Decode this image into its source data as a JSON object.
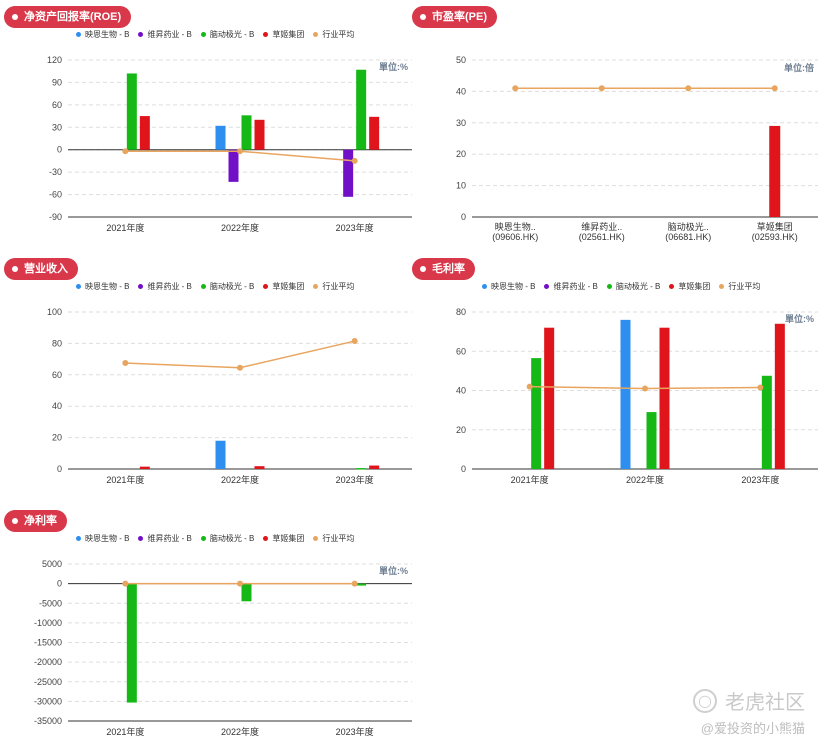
{
  "colors": {
    "badge": "#d8384a",
    "series": [
      "#2f8ff0",
      "#7210c8",
      "#15b815",
      "#e0141b",
      "#e8a560"
    ],
    "grid": "#dddddd",
    "axis": "#333333",
    "unit_text": "#6f7f93"
  },
  "legend_labels": [
    "映恩生物 - B",
    "维昇药业 - B",
    "脑动极光 - B",
    "草姬集团",
    "行业平均"
  ],
  "panels": [
    {
      "id": "roe",
      "title": "净资产回报率(ROE)",
      "unit": "單位:%",
      "legend": true
    },
    {
      "id": "pe",
      "title": "市盈率(PE)",
      "unit": "单位:倍",
      "legend": false
    },
    {
      "id": "revenue",
      "title": "营业收入",
      "unit": "",
      "legend": true
    },
    {
      "id": "gross-margin",
      "title": "毛利率",
      "unit": "單位:%",
      "legend": true
    },
    {
      "id": "net-margin",
      "title": "净利率",
      "unit": "單位:%",
      "legend": true
    }
  ],
  "chart_data": [
    {
      "type": "bar",
      "title": "净资产回报率(ROE)",
      "categories": [
        "2021年度",
        "2022年度",
        "2023年度"
      ],
      "ylim": [
        -90,
        120
      ],
      "yticks": [
        -90,
        -60,
        -30,
        0,
        30,
        60,
        90,
        120
      ],
      "grid": true,
      "legend_position": "top",
      "series": [
        {
          "name": "映恩生物 - B",
          "values": [
            null,
            32,
            null
          ]
        },
        {
          "name": "维昇药业 - B",
          "values": [
            null,
            -43,
            -63
          ]
        },
        {
          "name": "脑动极光 - B",
          "values": [
            102,
            46,
            107
          ]
        },
        {
          "name": "草姬集团",
          "values": [
            45,
            40,
            44
          ]
        }
      ],
      "line": {
        "name": "行业平均",
        "values": [
          -2,
          -2,
          -15
        ]
      }
    },
    {
      "type": "bar",
      "title": "市盈率(PE)",
      "categories": [
        "映恩生物..\n(09606.HK)",
        "维昇药业..\n(02561.HK)",
        "脑动极光..\n(06681.HK)",
        "草姬集团\n(02593.HK)"
      ],
      "ylim": [
        0,
        50
      ],
      "yticks": [
        0,
        10,
        20,
        30,
        40,
        50
      ],
      "grid": true,
      "series": [
        {
          "name": "草姬集团",
          "values": [
            null,
            null,
            null,
            29
          ]
        }
      ],
      "line": {
        "name": "行业平均",
        "values": [
          41,
          41,
          41,
          41
        ]
      }
    },
    {
      "type": "bar",
      "title": "营业收入",
      "categories": [
        "2021年度",
        "2022年度",
        "2023年度"
      ],
      "ylim": [
        0,
        100
      ],
      "yticks": [
        0,
        20,
        40,
        60,
        80,
        100
      ],
      "grid": true,
      "legend_position": "top",
      "series": [
        {
          "name": "映恩生物 - B",
          "values": [
            null,
            18,
            null
          ]
        },
        {
          "name": "维昇药业 - B",
          "values": [
            null,
            null,
            null
          ]
        },
        {
          "name": "脑动极光 - B",
          "values": [
            null,
            null,
            0.6
          ]
        },
        {
          "name": "草姬集团",
          "values": [
            1.5,
            1.8,
            2.2
          ]
        }
      ],
      "line": {
        "name": "行业平均",
        "values": [
          67.5,
          64.5,
          81.5
        ]
      }
    },
    {
      "type": "bar",
      "title": "毛利率",
      "categories": [
        "2021年度",
        "2022年度",
        "2023年度"
      ],
      "ylim": [
        0,
        80
      ],
      "yticks": [
        0,
        20,
        40,
        60,
        80
      ],
      "grid": true,
      "legend_position": "top",
      "series": [
        {
          "name": "映恩生物 - B",
          "values": [
            null,
            76,
            null
          ]
        },
        {
          "name": "维昇药业 - B",
          "values": [
            null,
            null,
            null
          ]
        },
        {
          "name": "脑动极光 - B",
          "values": [
            56.5,
            29,
            47.5
          ]
        },
        {
          "name": "草姬集团",
          "values": [
            72,
            72,
            74
          ]
        }
      ],
      "line": {
        "name": "行业平均",
        "values": [
          42,
          41,
          41.5
        ]
      }
    },
    {
      "type": "bar",
      "title": "净利率",
      "categories": [
        "2021年度",
        "2022年度",
        "2023年度"
      ],
      "ylim": [
        -35000,
        5000
      ],
      "yticks": [
        -35000,
        -30000,
        -25000,
        -20000,
        -15000,
        -10000,
        -5000,
        0,
        5000
      ],
      "grid": true,
      "legend_position": "top",
      "series": [
        {
          "name": "映恩生物 - B",
          "values": [
            null,
            null,
            null
          ]
        },
        {
          "name": "维昇药业 - B",
          "values": [
            null,
            null,
            null
          ]
        },
        {
          "name": "脑动极光 - B",
          "values": [
            -30300,
            -4500,
            -500
          ]
        },
        {
          "name": "草姬集团",
          "values": [
            null,
            null,
            null
          ]
        }
      ],
      "line": {
        "name": "行业平均",
        "values": [
          0,
          0,
          0
        ]
      }
    }
  ],
  "watermark": {
    "brand": "老虎社区",
    "handle": "@爱投资的小熊猫",
    "icon": "tiger-logo-icon"
  }
}
